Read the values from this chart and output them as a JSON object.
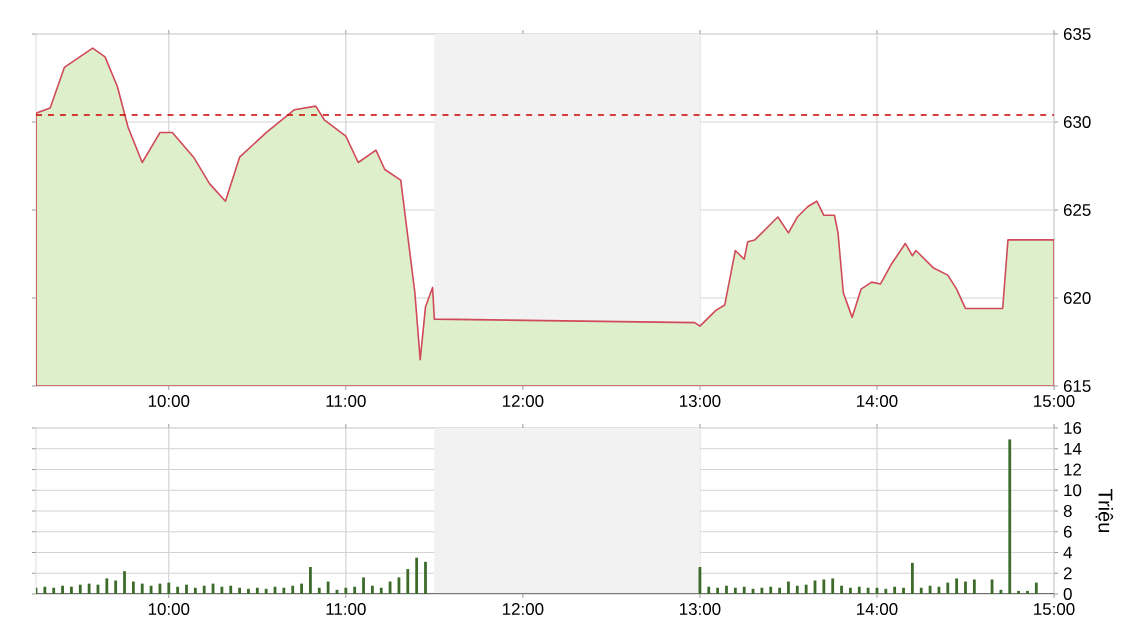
{
  "chart_data": [
    {
      "type": "area",
      "color": "#ddefcb",
      "xlim": [
        9.25,
        15
      ],
      "ylim": [
        615,
        635
      ],
      "xticks": [
        {
          "value": 10,
          "label": "10:00"
        },
        {
          "value": 11,
          "label": "11:00"
        },
        {
          "value": 12,
          "label": "12:00"
        },
        {
          "value": 13,
          "label": "13:00"
        },
        {
          "value": 14,
          "label": "14:00"
        },
        {
          "value": 15,
          "label": "15:00"
        }
      ],
      "yticks": [
        615,
        620,
        625,
        630,
        635
      ],
      "grid": true,
      "x": [
        9.25,
        9.33,
        9.41,
        9.57,
        9.64,
        9.71,
        9.77,
        9.85,
        9.95,
        10.02,
        10.14,
        10.23,
        10.32,
        10.4,
        10.55,
        10.71,
        10.83,
        10.88,
        11.0,
        11.07,
        11.17,
        11.22,
        11.31,
        11.39,
        11.42,
        11.45,
        11.49,
        11.5,
        12.97,
        13.0,
        13.09,
        13.14,
        13.2,
        13.25,
        13.27,
        13.31,
        13.44,
        13.5,
        13.55,
        13.61,
        13.66,
        13.7,
        13.76,
        13.78,
        13.81,
        13.86,
        13.91,
        13.97,
        14.02,
        14.08,
        14.16,
        14.2,
        14.22,
        14.32,
        14.4,
        14.45,
        14.5,
        14.71,
        14.74,
        15.0
      ],
      "values": [
        630.5,
        630.8,
        633.1,
        634.2,
        633.7,
        632.0,
        629.7,
        627.7,
        629.4,
        629.4,
        628.0,
        626.5,
        625.5,
        628.0,
        629.4,
        630.7,
        630.9,
        630.1,
        629.2,
        627.7,
        628.4,
        627.3,
        626.7,
        620.3,
        616.5,
        619.5,
        620.6,
        618.8,
        618.6,
        618.4,
        619.3,
        619.6,
        622.7,
        622.2,
        623.2,
        623.3,
        624.6,
        623.7,
        624.6,
        625.2,
        625.5,
        624.7,
        624.7,
        623.7,
        620.3,
        618.9,
        620.5,
        620.9,
        620.8,
        621.9,
        623.1,
        622.4,
        622.7,
        621.7,
        621.3,
        620.5,
        619.4,
        619.4,
        623.3,
        623.3
      ],
      "ref_lines": [
        {
          "axis": "y",
          "value": 630.4,
          "color": "#cc0000",
          "line_style": "dashed"
        }
      ],
      "bands": [
        {
          "axis": "x",
          "from": 11.5,
          "to": 13,
          "color": "#f2f2f2"
        }
      ]
    },
    {
      "type": "bar",
      "color": "#3d6b2a",
      "xlim": [
        9.25,
        15
      ],
      "ylim": [
        0,
        16
      ],
      "ylabel": "Triệu",
      "xticks": [
        {
          "value": 10,
          "label": "10:00"
        },
        {
          "value": 11,
          "label": "11:00"
        },
        {
          "value": 12,
          "label": "12:00"
        },
        {
          "value": 13,
          "label": "13:00"
        },
        {
          "value": 14,
          "label": "14:00"
        },
        {
          "value": 15,
          "label": "15:00"
        }
      ],
      "yticks": [
        0,
        2,
        4,
        6,
        8,
        10,
        12,
        14,
        16
      ],
      "grid": true,
      "x": [
        9.25,
        9.3,
        9.35,
        9.4,
        9.45,
        9.5,
        9.55,
        9.6,
        9.65,
        9.7,
        9.75,
        9.8,
        9.85,
        9.9,
        9.95,
        10.0,
        10.05,
        10.1,
        10.15,
        10.2,
        10.25,
        10.3,
        10.35,
        10.4,
        10.45,
        10.5,
        10.55,
        10.6,
        10.65,
        10.7,
        10.75,
        10.8,
        10.85,
        10.9,
        10.95,
        11.0,
        11.05,
        11.1,
        11.15,
        11.2,
        11.25,
        11.3,
        11.35,
        11.4,
        11.45,
        13.0,
        13.05,
        13.1,
        13.15,
        13.2,
        13.25,
        13.3,
        13.35,
        13.4,
        13.45,
        13.5,
        13.55,
        13.6,
        13.65,
        13.7,
        13.75,
        13.8,
        13.85,
        13.9,
        13.95,
        14.0,
        14.05,
        14.1,
        14.15,
        14.2,
        14.25,
        14.3,
        14.35,
        14.4,
        14.45,
        14.5,
        14.55,
        14.65,
        14.7,
        14.75,
        14.8,
        14.85,
        14.9
      ],
      "values": [
        0.6,
        0.7,
        0.6,
        0.8,
        0.7,
        0.9,
        1.0,
        0.9,
        1.5,
        1.3,
        2.2,
        1.2,
        1.0,
        0.8,
        1.0,
        1.1,
        0.7,
        0.9,
        0.6,
        0.8,
        1.0,
        0.7,
        0.8,
        0.6,
        0.5,
        0.6,
        0.5,
        0.7,
        0.6,
        0.8,
        1.0,
        2.6,
        0.6,
        1.2,
        0.4,
        0.6,
        0.7,
        1.6,
        0.8,
        0.6,
        1.2,
        1.6,
        2.4,
        3.5,
        3.1,
        2.6,
        0.7,
        0.6,
        0.8,
        0.6,
        0.7,
        0.5,
        0.6,
        0.7,
        0.6,
        1.2,
        0.8,
        0.9,
        1.3,
        1.4,
        1.5,
        0.8,
        0.6,
        0.7,
        0.6,
        0.6,
        0.5,
        0.7,
        0.6,
        3.0,
        0.6,
        0.8,
        0.7,
        1.1,
        1.5,
        1.2,
        1.4,
        1.4,
        0.4,
        14.9,
        0.3,
        0.3,
        1.1
      ],
      "bands": [
        {
          "axis": "x",
          "from": 11.5,
          "to": 13,
          "color": "#f2f2f2"
        }
      ]
    }
  ]
}
